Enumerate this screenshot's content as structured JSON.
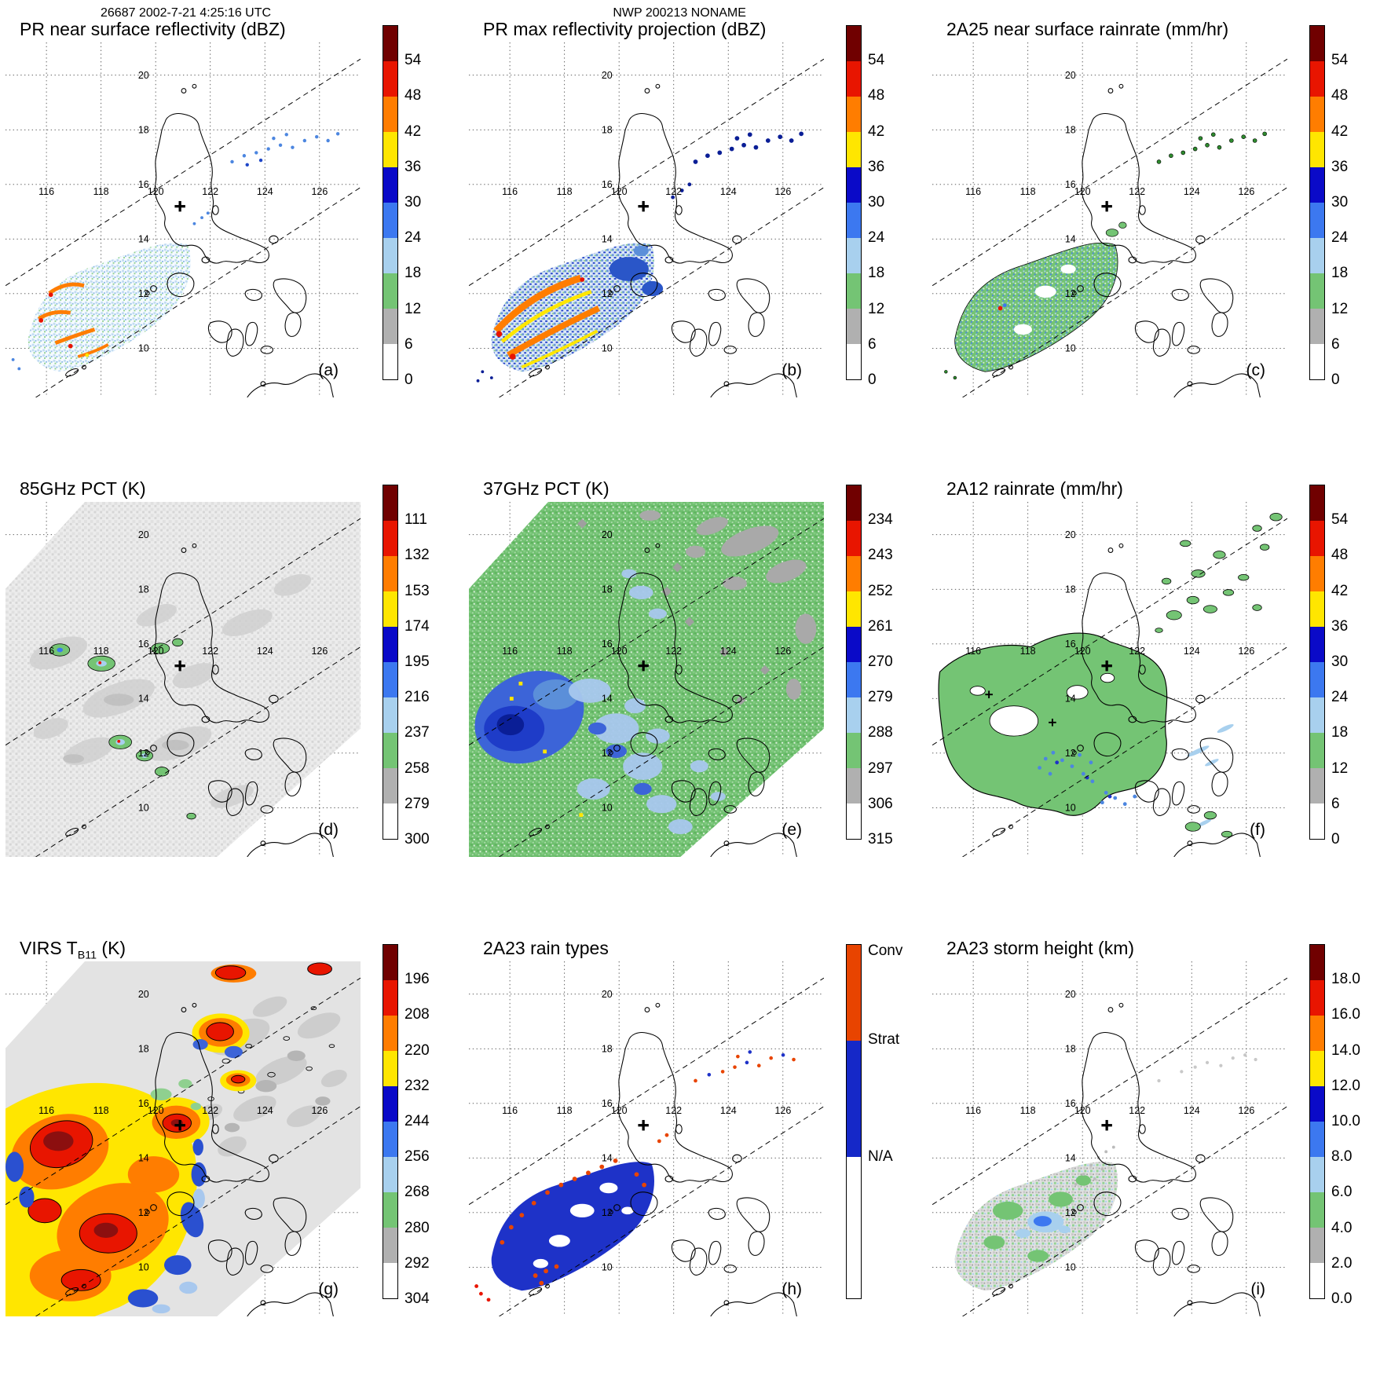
{
  "header": {
    "left_label": "26687 2002-7-21 4:25:16 UTC",
    "center_label": "NWP 200213 NONAME"
  },
  "geo": {
    "lon_ticks": [
      "116",
      "118",
      "120",
      "122",
      "124",
      "126"
    ],
    "lon_values": [
      116,
      118,
      120,
      122,
      124,
      126
    ],
    "lat_ticks": [
      "20",
      "18",
      "16",
      "14",
      "12",
      "10"
    ],
    "lat_values": [
      20,
      18,
      16,
      14,
      12,
      10
    ]
  },
  "panels": [
    {
      "id": "a",
      "label": "(a)",
      "title_pre": "PR near surface reflectivity (dBZ)",
      "title_sub": "",
      "title_post": "",
      "colorbar": {
        "labels": [
          "54",
          "48",
          "42",
          "36",
          "30",
          "24",
          "18",
          "12",
          "6",
          "0"
        ],
        "fracs": [
          0.1,
          0.2,
          0.3,
          0.4,
          0.5,
          0.6,
          0.7,
          0.8,
          0.9,
          1.0
        ],
        "colors": [
          "#700000",
          "#e81500",
          "#ff7d00",
          "#ffe600",
          "#0a0ac8",
          "#3c78f0",
          "#a8d0ee",
          "#74c474",
          "#b0b0b0",
          "#ffffff"
        ]
      }
    },
    {
      "id": "b",
      "label": "(b)",
      "title_pre": "PR max reflectivity projection (dBZ)",
      "title_sub": "",
      "title_post": "",
      "colorbar": {
        "labels": [
          "54",
          "48",
          "42",
          "36",
          "30",
          "24",
          "18",
          "12",
          "6",
          "0"
        ],
        "fracs": [
          0.1,
          0.2,
          0.3,
          0.4,
          0.5,
          0.6,
          0.7,
          0.8,
          0.9,
          1.0
        ],
        "colors": [
          "#700000",
          "#e81500",
          "#ff7d00",
          "#ffe600",
          "#0a0ac8",
          "#3c78f0",
          "#a8d0ee",
          "#74c474",
          "#b0b0b0",
          "#ffffff"
        ]
      }
    },
    {
      "id": "c",
      "label": "(c)",
      "title_pre": "2A25 near surface rainrate (mm/hr)",
      "title_sub": "",
      "title_post": "",
      "colorbar": {
        "labels": [
          "54",
          "48",
          "42",
          "36",
          "30",
          "24",
          "18",
          "12",
          "6",
          "0"
        ],
        "fracs": [
          0.1,
          0.2,
          0.3,
          0.4,
          0.5,
          0.6,
          0.7,
          0.8,
          0.9,
          1.0
        ],
        "colors": [
          "#700000",
          "#e81500",
          "#ff7d00",
          "#ffe600",
          "#0a0ac8",
          "#3c78f0",
          "#a8d0ee",
          "#74c474",
          "#b0b0b0",
          "#ffffff"
        ]
      }
    },
    {
      "id": "d",
      "label": "(d)",
      "title_pre": "85GHz PCT (K)",
      "title_sub": "",
      "title_post": "",
      "colorbar": {
        "labels": [
          "111",
          "132",
          "153",
          "174",
          "195",
          "216",
          "237",
          "258",
          "279",
          "300"
        ],
        "fracs": [
          0.1,
          0.2,
          0.3,
          0.4,
          0.5,
          0.6,
          0.7,
          0.8,
          0.9,
          1.0
        ],
        "colors": [
          "#700000",
          "#e81500",
          "#ff7d00",
          "#ffe600",
          "#0a0ac8",
          "#3c78f0",
          "#a8d0ee",
          "#74c474",
          "#b0b0b0",
          "#ffffff"
        ]
      }
    },
    {
      "id": "e",
      "label": "(e)",
      "title_pre": "37GHz PCT (K)",
      "title_sub": "",
      "title_post": "",
      "colorbar": {
        "labels": [
          "234",
          "243",
          "252",
          "261",
          "270",
          "279",
          "288",
          "297",
          "306",
          "315"
        ],
        "fracs": [
          0.1,
          0.2,
          0.3,
          0.4,
          0.5,
          0.6,
          0.7,
          0.8,
          0.9,
          1.0
        ],
        "colors": [
          "#700000",
          "#e81500",
          "#ff7d00",
          "#ffe600",
          "#0a0ac8",
          "#3c78f0",
          "#a8d0ee",
          "#74c474",
          "#b0b0b0",
          "#ffffff"
        ]
      }
    },
    {
      "id": "f",
      "label": "(f)",
      "title_pre": "2A12 rainrate (mm/hr)",
      "title_sub": "",
      "title_post": "",
      "colorbar": {
        "labels": [
          "54",
          "48",
          "42",
          "36",
          "30",
          "24",
          "18",
          "12",
          "6",
          "0"
        ],
        "fracs": [
          0.1,
          0.2,
          0.3,
          0.4,
          0.5,
          0.6,
          0.7,
          0.8,
          0.9,
          1.0
        ],
        "colors": [
          "#700000",
          "#e81500",
          "#ff7d00",
          "#ffe600",
          "#0a0ac8",
          "#3c78f0",
          "#a8d0ee",
          "#74c474",
          "#b0b0b0",
          "#ffffff"
        ]
      }
    },
    {
      "id": "g",
      "label": "(g)",
      "title_pre": "VIRS T",
      "title_sub": "B11",
      "title_post": " (K)",
      "colorbar": {
        "labels": [
          "196",
          "208",
          "220",
          "232",
          "244",
          "256",
          "268",
          "280",
          "292",
          "304"
        ],
        "fracs": [
          0.1,
          0.2,
          0.3,
          0.4,
          0.5,
          0.6,
          0.7,
          0.8,
          0.9,
          1.0
        ],
        "colors": [
          "#700000",
          "#e81500",
          "#ff7d00",
          "#ffe600",
          "#0a0ac8",
          "#3c78f0",
          "#a8d0ee",
          "#74c474",
          "#b0b0b0",
          "#ffffff"
        ]
      }
    },
    {
      "id": "h",
      "label": "(h)",
      "title_pre": "2A23 rain types",
      "title_sub": "",
      "title_post": "",
      "colorbar": {
        "labels": [
          "Conv",
          "Strat",
          "N/A"
        ],
        "fracs": [
          0.02,
          0.27,
          0.6
        ],
        "heights": [
          0.27,
          0.33,
          0.4
        ],
        "colors": [
          "#e84400",
          "#1528c8",
          "#ffffff"
        ]
      }
    },
    {
      "id": "i",
      "label": "(i)",
      "title_pre": "2A23 storm height (km)",
      "title_sub": "",
      "title_post": "",
      "colorbar": {
        "labels": [
          "18.0",
          "16.0",
          "14.0",
          "12.0",
          "10.0",
          "8.0",
          "6.0",
          "4.0",
          "2.0",
          "0.0"
        ],
        "fracs": [
          0.1,
          0.2,
          0.3,
          0.4,
          0.5,
          0.6,
          0.7,
          0.8,
          0.9,
          1.0
        ],
        "colors": [
          "#700000",
          "#e81500",
          "#ff7d00",
          "#ffe600",
          "#0a0ac8",
          "#3c78f0",
          "#a8d0ee",
          "#74c474",
          "#b0b0b0",
          "#ffffff"
        ]
      }
    }
  ],
  "chart_data": {
    "type": "heatmap",
    "figure": "3x3 multi-panel TRMM satellite overpass maps over the Philippines",
    "overpass_header": {
      "orbit": "26687",
      "datetime_utc": "2002-7-21 4:25:16",
      "case": "NWP 200213 NONAME"
    },
    "map_extent": {
      "lon_range": [
        114.5,
        127.5
      ],
      "lat_range": [
        8.2,
        21.2
      ]
    },
    "lon_gridlines": [
      116,
      118,
      120,
      122,
      124,
      126
    ],
    "lat_gridlines": [
      10,
      12,
      14,
      16,
      18,
      20
    ],
    "storm_center_cross": {
      "lon": 120.9,
      "lat": 15.2
    },
    "swath_edges": "two dashed lines running SW-NE delimiting the PR swath",
    "colorbar_colors_top_to_bottom": [
      "#700000",
      "#e81500",
      "#ff7d00",
      "#ffe600",
      "#0a0ac8",
      "#3c78f0",
      "#a8d0ee",
      "#74c474",
      "#b0b0b0",
      "#ffffff"
    ],
    "panels": [
      {
        "panel": "a",
        "title": "PR near surface reflectivity (dBZ)",
        "units": "dBZ",
        "colorbar_ticks": [
          0,
          6,
          12,
          18,
          24,
          30,
          36,
          42,
          48,
          54
        ],
        "content": "speckled light-blue/green echoes with orange-red convective arcs SW of Luzon inside PR swath; scattered blue cells NE of Luzon"
      },
      {
        "panel": "b",
        "title": "PR max reflectivity projection (dBZ)",
        "units": "dBZ",
        "colorbar_ticks": [
          0,
          6,
          12,
          18,
          24,
          30,
          36,
          42,
          48,
          54
        ],
        "content": "stronger orange/yellow banded echoes SW of Luzon, blue patches near Mindoro, dark navy cells NE of Luzon"
      },
      {
        "panel": "c",
        "title": "2A25 near surface rainrate (mm/hr)",
        "units": "mm/hr",
        "colorbar_ticks": [
          0,
          6,
          12,
          18,
          24,
          30,
          36,
          42,
          48,
          54
        ],
        "content": "green rain area with light-blue embedded cells SW of Luzon; small dark cells NE of Luzon"
      },
      {
        "panel": "d",
        "title": "85GHz PCT (K)",
        "units": "K",
        "colorbar_ticks": [
          111,
          132,
          153,
          174,
          195,
          216,
          237,
          258,
          279,
          300
        ],
        "content": "wide TMI swath mostly 279-300 K (white/gray) with small green-blue depressions near 15-16N and 11-12.5N"
      },
      {
        "panel": "e",
        "title": "37GHz PCT (K)",
        "units": "K",
        "colorbar_ticks": [
          234,
          243,
          252,
          261,
          270,
          279,
          288,
          297,
          306,
          315
        ],
        "content": "wide swath mostly green (288 K class) with large blue low-PCT region west of Luzon and gray patches to the NE"
      },
      {
        "panel": "f",
        "title": "2A12 rainrate (mm/hr)",
        "units": "mm/hr",
        "colorbar_ticks": [
          0,
          6,
          12,
          18,
          24,
          30,
          36,
          42,
          48,
          54
        ],
        "content": "large contoured light-rain (green) shield over and west of the Philippines with blue cells south of 13N; scattered green cells NE"
      },
      {
        "panel": "g",
        "title": "VIRS TB11 (K)",
        "units": "K",
        "colorbar_ticks": [
          196,
          208,
          220,
          232,
          244,
          256,
          268,
          280,
          292,
          304
        ],
        "content": "full VIRS swath; warm gray scene NE, large cold cloud shield SW with yellow/orange/red and dark-red cores, blue fringes; cold core at storm cross"
      },
      {
        "panel": "h",
        "title": "2A23 rain types",
        "categories": [
          "Conv",
          "Strat",
          "N/A"
        ],
        "category_colors": [
          "#e84400",
          "#1528c8",
          "#ffffff"
        ],
        "content": "stratiform (blue) region SW of Luzon rimmed by convective (orange-red) pixels; scattered convective pixels NE of Luzon"
      },
      {
        "panel": "i",
        "title": "2A23 storm height (km)",
        "units": "km",
        "colorbar_ticks": [
          0,
          2,
          4,
          6,
          8,
          10,
          12,
          14,
          16,
          18
        ],
        "content": "storm heights 4-10 km (gray/green/light blue) SW of Luzon within PR swath; faint gray echoes NE"
      }
    ]
  }
}
